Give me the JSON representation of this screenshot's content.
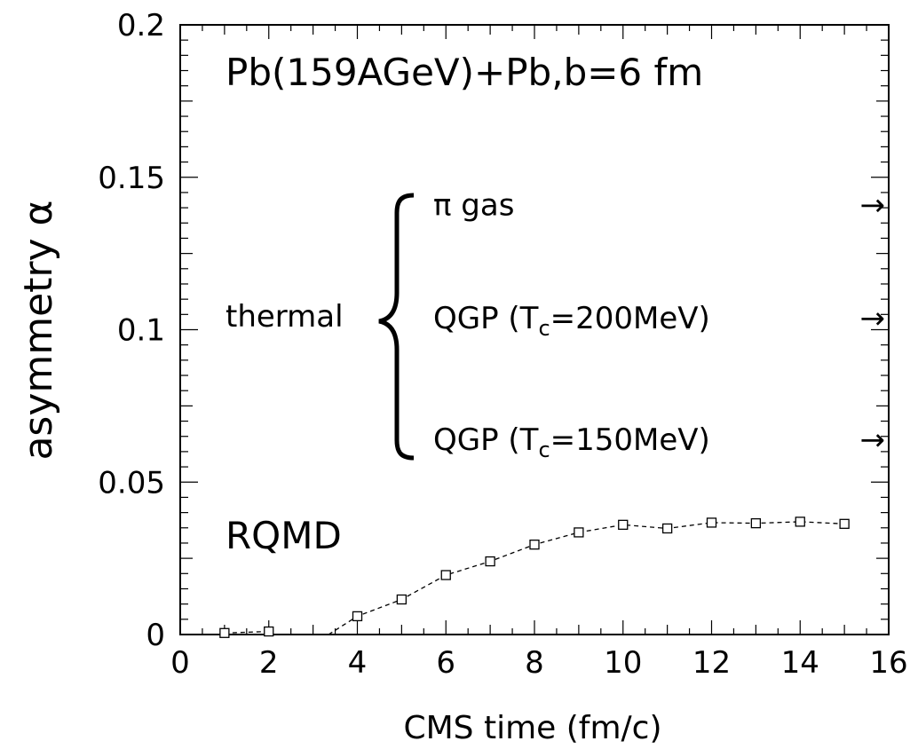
{
  "chart_data": {
    "type": "line",
    "xlabel": "CMS time (fm/c)",
    "ylabel": "asymmetry α",
    "xlim": [
      0,
      16
    ],
    "ylim": [
      0,
      0.2
    ],
    "x_ticks": [
      "0",
      "2",
      "4",
      "6",
      "8",
      "10",
      "12",
      "14",
      "16"
    ],
    "y_ticks": [
      "0",
      "0.05",
      "0.1",
      "0.15",
      "0.2"
    ],
    "grid": false,
    "series": [
      {
        "name": "RQMD",
        "marker": "open-square",
        "line": "dashed",
        "x": [
          1,
          2,
          4,
          5,
          6,
          7,
          8,
          9,
          10,
          11,
          12,
          13,
          14,
          15
        ],
        "y": [
          0.0005,
          0.001,
          0.006,
          0.0115,
          0.0195,
          0.024,
          0.0295,
          0.0335,
          0.036,
          0.0348,
          0.0367,
          0.0365,
          0.037,
          0.0363
        ]
      }
    ],
    "annotations": {
      "title": "Pb(159AGeV)+Pb,b=6 fm",
      "rqmd_label": "RQMD",
      "thermal_label": "thermal",
      "thermal_items": [
        {
          "label_main": "π gas",
          "label_sub": "",
          "label_tail": "",
          "arrow": "→",
          "y": 0.141
        },
        {
          "label_main": "QGP (T",
          "label_sub": "c",
          "label_tail": "=200MeV)",
          "arrow": "→",
          "y": 0.104
        },
        {
          "label_main": "QGP (T",
          "label_sub": "c",
          "label_tail": "=150MeV)",
          "arrow": "→",
          "y": 0.064
        }
      ]
    }
  }
}
